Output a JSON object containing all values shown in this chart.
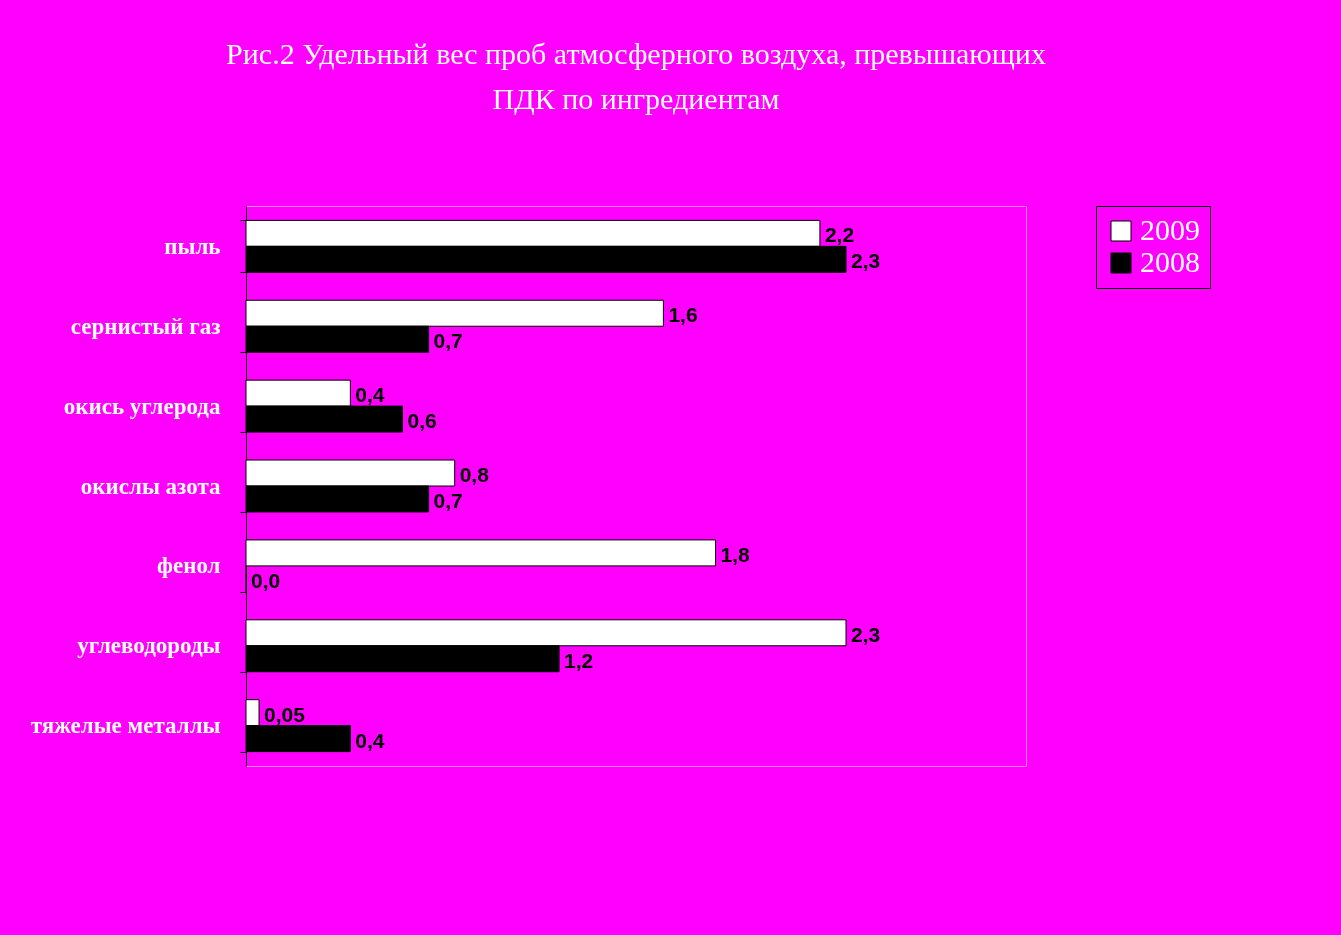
{
  "chart_data": {
    "type": "bar",
    "orientation": "horizontal",
    "title": "Рис.2 Удельный вес проб атмосферного воздуха, превышающих\nПДК по ингредиентам",
    "categories": [
      "пыль",
      "сернистый газ",
      "окись углерода",
      "окислы азота",
      "фенол",
      "углеводороды",
      "тяжелые металлы"
    ],
    "series": [
      {
        "name": "2009",
        "color": "#ffffff",
        "values": [
          2.2,
          1.6,
          0.4,
          0.8,
          1.8,
          2.3,
          0.05
        ],
        "value_labels": [
          "2,2",
          "1,6",
          "0,4",
          "0,8",
          "1,8",
          "2,3",
          "0,05"
        ]
      },
      {
        "name": "2008",
        "color": "#000000",
        "values": [
          2.3,
          0.7,
          0.6,
          0.7,
          0.0,
          1.2,
          0.4
        ],
        "value_labels": [
          "2,3",
          "0,7",
          "0,6",
          "0,7",
          "0,0",
          "1,2",
          "0,4"
        ]
      }
    ],
    "legend": "right"
  }
}
